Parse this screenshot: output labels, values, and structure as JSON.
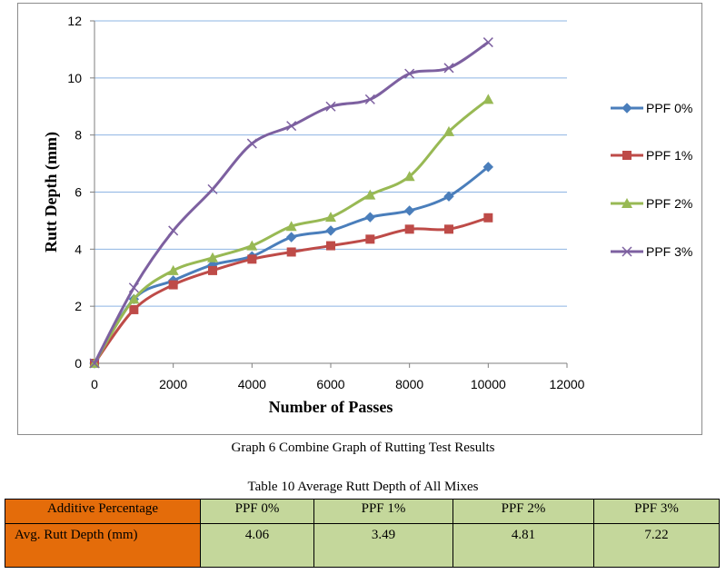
{
  "chart_data": {
    "type": "line",
    "xlabel": "Number of Passes",
    "ylabel": "Rutt Depth (mm)",
    "xlim": [
      0,
      12000
    ],
    "ylim": [
      0,
      12
    ],
    "x_ticks": [
      "0",
      "2000",
      "4000",
      "6000",
      "8000",
      "10000",
      "12000"
    ],
    "y_ticks": [
      "0",
      "2",
      "4",
      "6",
      "8",
      "10",
      "12"
    ],
    "grid": "horizontal",
    "legend_position": "right",
    "x": [
      0,
      1000,
      2000,
      3000,
      4000,
      5000,
      6000,
      7000,
      8000,
      9000,
      10000
    ],
    "series": [
      {
        "name": "PPF 0%",
        "marker": "diamond",
        "color": "#4a7ebb",
        "values": [
          0,
          2.25,
          2.9,
          3.45,
          3.75,
          4.42,
          4.65,
          5.12,
          5.35,
          5.85,
          6.88
        ]
      },
      {
        "name": "PPF 1%",
        "marker": "square",
        "color": "#be4b48",
        "values": [
          0,
          1.88,
          2.75,
          3.25,
          3.65,
          3.9,
          4.12,
          4.35,
          4.7,
          4.7,
          5.1
        ]
      },
      {
        "name": "PPF 2%",
        "marker": "triangle",
        "color": "#98b954",
        "values": [
          0,
          2.25,
          3.25,
          3.7,
          4.12,
          4.8,
          5.12,
          5.9,
          6.55,
          8.12,
          9.25
        ]
      },
      {
        "name": "PPF 3%",
        "marker": "x",
        "color": "#7d60a0",
        "values": [
          0,
          2.65,
          4.65,
          6.1,
          7.7,
          8.32,
          9.0,
          9.25,
          10.15,
          10.35,
          11.25
        ]
      }
    ]
  },
  "captions": {
    "graph": "Graph 6 Combine Graph of Rutting Test Results",
    "table": "Table 10 Average Rutt Depth of All Mixes"
  },
  "table": {
    "header_label": "Additive Percentage",
    "columns": [
      "PPF 0%",
      "PPF 1%",
      "PPF 2%",
      "PPF 3%"
    ],
    "row_label": "Avg. Rutt Depth (mm)",
    "values": [
      "4.06",
      "3.49",
      "4.81",
      "7.22"
    ]
  }
}
